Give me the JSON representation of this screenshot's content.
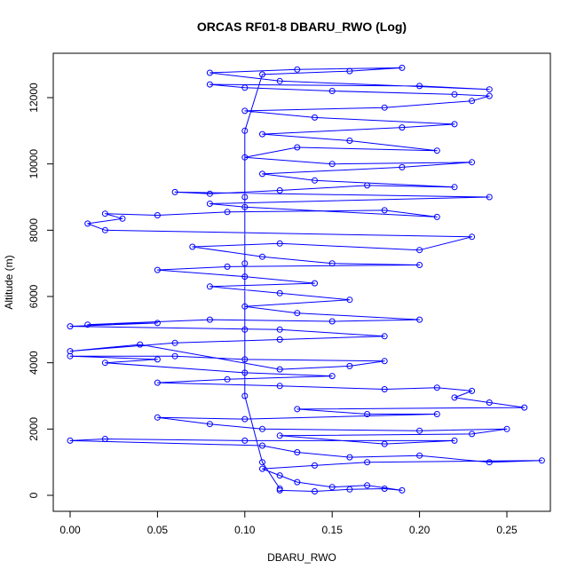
{
  "chart_data": {
    "type": "scatter",
    "title": "ORCAS RF01-8 DBARU_RWO (Log)",
    "xlabel": "DBARU_RWO",
    "ylabel": "Altitude (m)",
    "xlim": [
      0.0,
      0.27
    ],
    "ylim": [
      0,
      13000
    ],
    "x_ticks": [
      0.0,
      0.05,
      0.1,
      0.15,
      0.2,
      0.25
    ],
    "x_tick_labels": [
      "0.00",
      "0.05",
      "0.10",
      "0.15",
      "0.20",
      "0.25"
    ],
    "y_ticks": [
      0,
      2000,
      4000,
      6000,
      8000,
      10000,
      12000
    ],
    "y_tick_labels": [
      "0",
      "2000",
      "4000",
      "6000",
      "8000",
      "10000",
      "12000"
    ],
    "grid": false,
    "color": "#0000ff",
    "series": [
      {
        "values": [
          [
            0.12,
            150
          ],
          [
            0.14,
            120
          ],
          [
            0.16,
            180
          ],
          [
            0.18,
            200
          ],
          [
            0.19,
            150
          ],
          [
            0.17,
            300
          ],
          [
            0.15,
            250
          ],
          [
            0.13,
            400
          ],
          [
            0.12,
            600
          ],
          [
            0.11,
            800
          ],
          [
            0.14,
            900
          ],
          [
            0.17,
            1000
          ],
          [
            0.27,
            1050
          ],
          [
            0.24,
            1000
          ],
          [
            0.2,
            1200
          ],
          [
            0.16,
            1150
          ],
          [
            0.13,
            1300
          ],
          [
            0.11,
            1500
          ],
          [
            0.0,
            1650
          ],
          [
            0.02,
            1700
          ],
          [
            0.1,
            1650
          ],
          [
            0.22,
            1650
          ],
          [
            0.18,
            1550
          ],
          [
            0.12,
            1800
          ],
          [
            0.23,
            1850
          ],
          [
            0.25,
            2000
          ],
          [
            0.2,
            1950
          ],
          [
            0.11,
            2000
          ],
          [
            0.08,
            2150
          ],
          [
            0.05,
            2350
          ],
          [
            0.1,
            2300
          ],
          [
            0.21,
            2450
          ],
          [
            0.17,
            2450
          ],
          [
            0.13,
            2600
          ],
          [
            0.26,
            2650
          ],
          [
            0.24,
            2800
          ],
          [
            0.22,
            2950
          ],
          [
            0.23,
            3150
          ],
          [
            0.21,
            3250
          ],
          [
            0.18,
            3200
          ],
          [
            0.12,
            3300
          ],
          [
            0.05,
            3400
          ],
          [
            0.09,
            3500
          ],
          [
            0.15,
            3600
          ],
          [
            0.1,
            3700
          ],
          [
            0.02,
            4000
          ],
          [
            0.05,
            4100
          ],
          [
            0.0,
            4200
          ],
          [
            0.06,
            4200
          ],
          [
            0.1,
            4100
          ],
          [
            0.18,
            4050
          ],
          [
            0.16,
            3900
          ],
          [
            0.12,
            3800
          ],
          [
            0.04,
            4550
          ],
          [
            0.0,
            4350
          ],
          [
            0.06,
            4600
          ],
          [
            0.12,
            4700
          ],
          [
            0.18,
            4800
          ],
          [
            0.12,
            5000
          ],
          [
            0.0,
            5100
          ],
          [
            0.05,
            5200
          ],
          [
            0.01,
            5150
          ],
          [
            0.08,
            5300
          ],
          [
            0.15,
            5250
          ],
          [
            0.2,
            5300
          ],
          [
            0.13,
            5500
          ],
          [
            0.1,
            5700
          ],
          [
            0.16,
            5900
          ],
          [
            0.12,
            6100
          ],
          [
            0.08,
            6300
          ],
          [
            0.14,
            6400
          ],
          [
            0.1,
            6600
          ],
          [
            0.05,
            6800
          ],
          [
            0.09,
            6900
          ],
          [
            0.2,
            6950
          ],
          [
            0.15,
            7000
          ],
          [
            0.11,
            7200
          ],
          [
            0.07,
            7500
          ],
          [
            0.12,
            7600
          ],
          [
            0.2,
            7400
          ],
          [
            0.23,
            7800
          ],
          [
            0.02,
            8000
          ],
          [
            0.01,
            8200
          ],
          [
            0.03,
            8350
          ],
          [
            0.02,
            8500
          ],
          [
            0.05,
            8450
          ],
          [
            0.09,
            8550
          ],
          [
            0.18,
            8600
          ],
          [
            0.21,
            8400
          ],
          [
            0.1,
            8700
          ],
          [
            0.08,
            8800
          ],
          [
            0.24,
            9000
          ],
          [
            0.06,
            9150
          ],
          [
            0.08,
            9100
          ],
          [
            0.12,
            9200
          ],
          [
            0.17,
            9350
          ],
          [
            0.22,
            9300
          ],
          [
            0.14,
            9500
          ],
          [
            0.11,
            9700
          ],
          [
            0.19,
            9900
          ],
          [
            0.23,
            10050
          ],
          [
            0.15,
            10000
          ],
          [
            0.1,
            10200
          ],
          [
            0.13,
            10500
          ],
          [
            0.21,
            10400
          ],
          [
            0.16,
            10700
          ],
          [
            0.11,
            10900
          ],
          [
            0.19,
            11100
          ],
          [
            0.22,
            11200
          ],
          [
            0.14,
            11400
          ],
          [
            0.1,
            11600
          ],
          [
            0.18,
            11700
          ],
          [
            0.23,
            11900
          ],
          [
            0.24,
            12050
          ],
          [
            0.22,
            12100
          ],
          [
            0.15,
            12200
          ],
          [
            0.1,
            12300
          ],
          [
            0.08,
            12400
          ],
          [
            0.2,
            12350
          ],
          [
            0.24,
            12250
          ],
          [
            0.12,
            12500
          ],
          [
            0.08,
            12750
          ],
          [
            0.13,
            12850
          ],
          [
            0.19,
            12900
          ],
          [
            0.16,
            12800
          ],
          [
            0.11,
            12700
          ],
          [
            0.1,
            11000
          ],
          [
            0.1,
            9000
          ],
          [
            0.1,
            7000
          ],
          [
            0.1,
            5000
          ],
          [
            0.1,
            3000
          ],
          [
            0.11,
            1000
          ],
          [
            0.12,
            200
          ]
        ]
      }
    ]
  }
}
